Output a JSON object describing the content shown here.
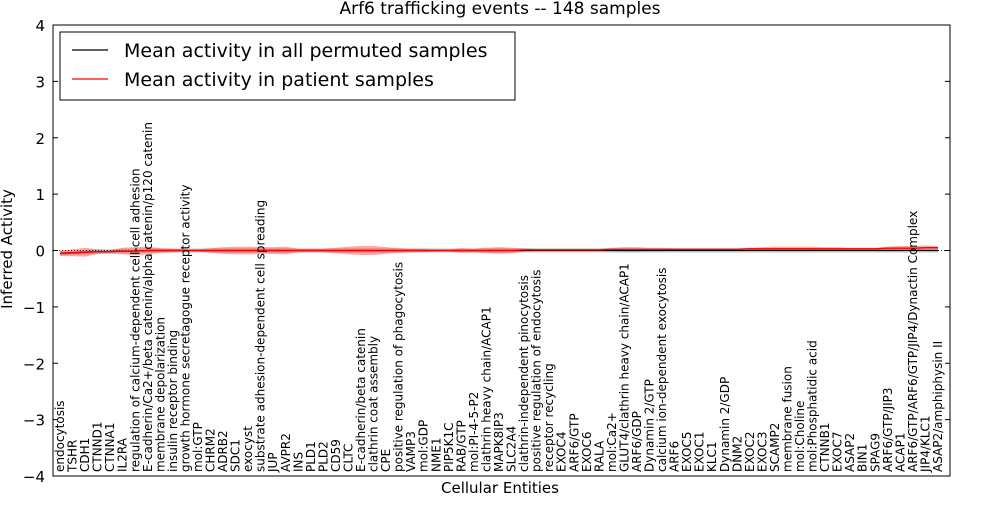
{
  "chart_data": {
    "type": "line",
    "title": "Arf6 trafficking events -- 148 samples",
    "xlabel": "Cellular Entities",
    "ylabel": "Inferred Activity",
    "ylim": [
      -4,
      4
    ],
    "yticks": [
      "4",
      "3",
      "2",
      "1",
      "0",
      "−1",
      "−2",
      "−3",
      "−4"
    ],
    "grid": false,
    "legend_position": "top-left",
    "categories": [
      "endocytosis",
      "TSHR",
      "CDH1",
      "CTNND1",
      "CTNNA1",
      "IL2RA",
      "regulation of calcium-dependent cell-cell adhesion",
      "E-cadherin/Ca2+/beta catenin/alpha catenin/p120 catenin",
      "membrane depolarization",
      "insulin receptor binding",
      "growth hormone secretagogue receptor activity",
      "mol:GTP",
      "CHRM2",
      "ADRB2",
      "SDC1",
      "exocyst",
      "substrate adhesion-dependent cell spreading",
      "JUP",
      "AVPR2",
      "INS",
      "PLD1",
      "PLD2",
      "CD59",
      "CLTC",
      "E-cadherin/beta catenin",
      "clathrin coat assembly",
      "CPE",
      "positive regulation of phagocytosis",
      "VAMP3",
      "mol:GDP",
      "NME1",
      "PIP5K1C",
      "RAB/GTP",
      "mol:PI-4-5-P2",
      "clathrin heavy chain/ACAP1",
      "MAPK8IP3",
      "SLC2A4",
      "clathrin-independent pinocytosis",
      "positive regulation of endocytosis",
      "receptor recycling",
      "EXOC4",
      "ARF6/GTP",
      "EXOC6",
      "RALA",
      "mol:Ca2+",
      "GLUT4/clathrin heavy chain/ACAP1",
      "ARF6/GDP",
      "Dynamin 2/GTP",
      "calcium ion-dependent exocytosis",
      "ARF6",
      "EXOC5",
      "EXOC1",
      "KLC1",
      "Dynamin 2/GDP",
      "DNM2",
      "EXOC2",
      "EXOC3",
      "SCAMP2",
      "membrane fusion",
      "mol:Choline",
      "mol:Phosphatidic acid",
      "CTNNB1",
      "EXOC7",
      "ASAP2",
      "BIN1",
      "SPAG9",
      "ARF6/GTP/JIP3",
      "ACAP1",
      "ARF6/GTP/ARF6/GTP/JIP4/Dynactin Complex",
      "JIP4/KLC1",
      "ASAP2/amphiphysin II"
    ],
    "series": [
      {
        "name": "Mean activity in all permuted samples",
        "color": "#000000",
        "values": [
          -0.05,
          -0.04,
          -0.03,
          -0.02,
          -0.02,
          -0.01,
          -0.01,
          0.0,
          0.0,
          0.0,
          0.0,
          0.0,
          0.0,
          0.0,
          0.0,
          0.0,
          0.0,
          0.0,
          0.0,
          0.0,
          0.0,
          0.0,
          0.0,
          0.0,
          0.0,
          0.0,
          0.0,
          0.0,
          0.0,
          0.0,
          0.0,
          0.0,
          0.0,
          0.0,
          0.0,
          0.0,
          0.0,
          0.0,
          0.0,
          0.0,
          0.0,
          0.0,
          0.0,
          0.0,
          0.0,
          0.0,
          0.0,
          0.0,
          0.0,
          0.0,
          0.0,
          0.0,
          0.0,
          0.0,
          0.0,
          0.0,
          0.0,
          0.0,
          0.0,
          0.0,
          0.0,
          0.0,
          0.0,
          0.0,
          0.0,
          0.0,
          0.0,
          0.0,
          0.0,
          0.0,
          0.0
        ],
        "band": 0.04
      },
      {
        "name": "Mean activity in patient samples",
        "color": "#ff0000",
        "values": [
          -0.05,
          -0.04,
          -0.03,
          -0.02,
          -0.02,
          -0.01,
          -0.01,
          0.0,
          0.0,
          0.0,
          0.0,
          0.0,
          0.0,
          0.0,
          0.0,
          0.0,
          0.0,
          0.0,
          0.0,
          0.0,
          0.0,
          0.0,
          0.0,
          0.0,
          0.0,
          0.0,
          0.0,
          0.0,
          0.0,
          0.0,
          0.0,
          0.0,
          0.0,
          0.0,
          0.0,
          0.0,
          0.0,
          0.01,
          0.01,
          0.01,
          0.01,
          0.01,
          0.01,
          0.01,
          0.02,
          0.02,
          0.02,
          0.02,
          0.02,
          0.02,
          0.02,
          0.02,
          0.02,
          0.02,
          0.02,
          0.03,
          0.03,
          0.03,
          0.03,
          0.03,
          0.03,
          0.03,
          0.03,
          0.03,
          0.03,
          0.03,
          0.04,
          0.04,
          0.04,
          0.05,
          0.05
        ],
        "band": [
          0.05,
          0.06,
          0.08,
          0.04,
          0.03,
          0.06,
          0.07,
          0.07,
          0.04,
          0.03,
          0.02,
          0.02,
          0.04,
          0.06,
          0.07,
          0.07,
          0.06,
          0.06,
          0.07,
          0.03,
          0.03,
          0.03,
          0.05,
          0.07,
          0.08,
          0.08,
          0.06,
          0.04,
          0.03,
          0.03,
          0.02,
          0.02,
          0.04,
          0.03,
          0.05,
          0.06,
          0.05,
          0.03,
          0.02,
          0.02,
          0.02,
          0.02,
          0.02,
          0.02,
          0.03,
          0.04,
          0.04,
          0.03,
          0.03,
          0.02,
          0.02,
          0.02,
          0.02,
          0.02,
          0.02,
          0.02,
          0.03,
          0.04,
          0.04,
          0.04,
          0.04,
          0.03,
          0.03,
          0.02,
          0.02,
          0.02,
          0.03,
          0.04,
          0.04,
          0.04,
          0.03
        ]
      }
    ]
  }
}
